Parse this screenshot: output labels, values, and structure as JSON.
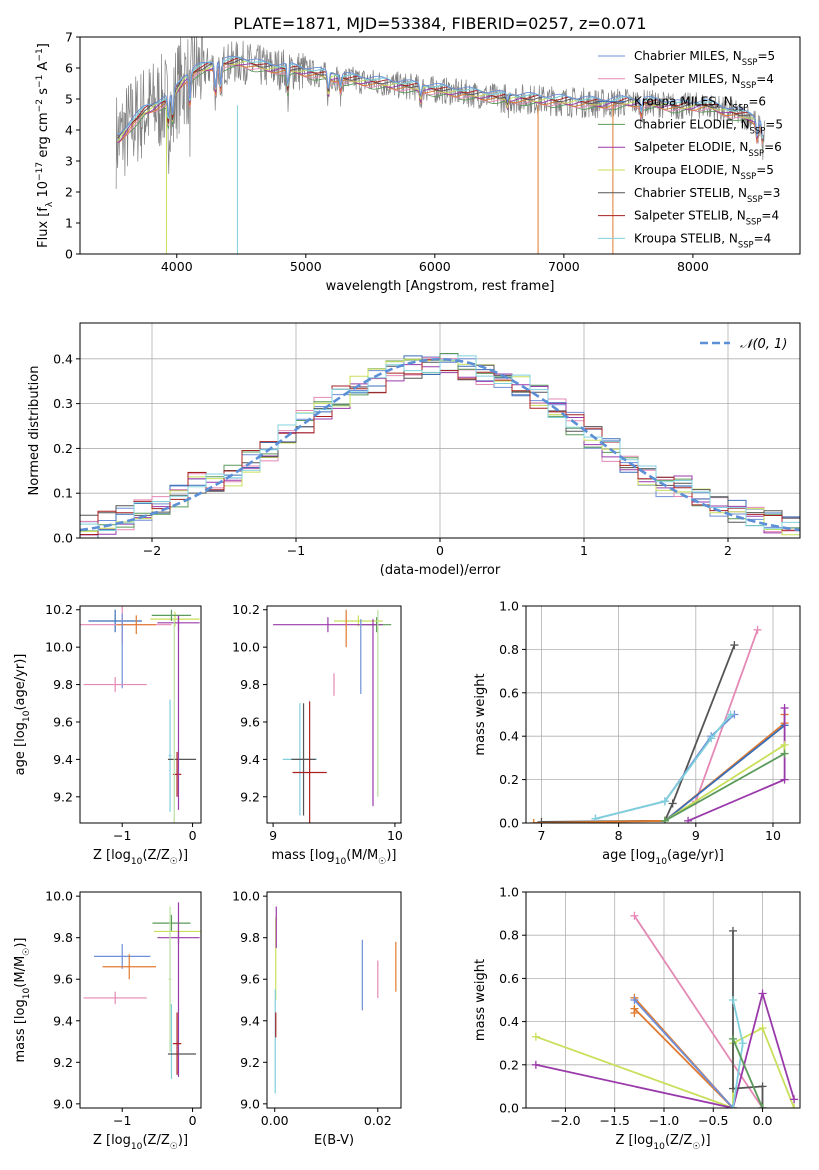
{
  "figure_title": "PLATE=1871, MJD=53384, FIBERID=0257, z=0.071",
  "colors": {
    "c1": "#6f8fd8",
    "c2": "#e589b5",
    "c3": "#3a6fb8",
    "c4": "#5a9a5a",
    "c5": "#9a3aaa",
    "c6": "#c8df5a",
    "c7": "#555555",
    "c8": "#aa2020",
    "c9": "#80d0dc",
    "c10": "#e07a30",
    "c11": "#b8e0a0",
    "data": "#808080",
    "gauss": "#5b8fd6"
  },
  "chart_data": [
    {
      "id": "spectrum",
      "type": "line",
      "xlabel": "wavelength [Angstrom, rest frame]",
      "ylabel": "Flux [f_λ 10^-17 erg cm^-2 s^-1 A^-1]",
      "xlim": [
        3250,
        8830
      ],
      "ylim": [
        0,
        7
      ],
      "xticks": [
        4000,
        5000,
        6000,
        7000,
        8000
      ],
      "yticks": [
        0,
        1,
        2,
        3,
        4,
        5,
        6,
        7
      ],
      "legend_position": "top-right",
      "legend": [
        {
          "label": "Chabrier MILES, N_SSP=5",
          "color": "c1"
        },
        {
          "label": "Salpeter MILES, N_SSP=4",
          "color": "c2"
        },
        {
          "label": "Kroupa MILES, N_SSP=6",
          "color": "c3"
        },
        {
          "label": "Chabrier ELODIE, N_SSP=5",
          "color": "c4"
        },
        {
          "label": "Salpeter ELODIE, N_SSP=6",
          "color": "c5"
        },
        {
          "label": "Kroupa ELODIE, N_SSP=5",
          "color": "c6"
        },
        {
          "label": "Chabrier STELIB, N_SSP=3",
          "color": "c7"
        },
        {
          "label": "Salpeter STELIB, N_SSP=4",
          "color": "c8"
        },
        {
          "label": "Kroupa STELIB, N_SSP=4",
          "color": "c9"
        }
      ],
      "continuum": [
        [
          3550,
          3.7
        ],
        [
          3650,
          4.2
        ],
        [
          3750,
          4.6
        ],
        [
          3850,
          4.8
        ],
        [
          3950,
          5.0
        ],
        [
          4050,
          5.6
        ],
        [
          4150,
          5.9
        ],
        [
          4300,
          6.1
        ],
        [
          4500,
          6.2
        ],
        [
          4700,
          6.0
        ],
        [
          4900,
          5.95
        ],
        [
          5100,
          5.8
        ],
        [
          5300,
          5.65
        ],
        [
          5500,
          5.55
        ],
        [
          5700,
          5.45
        ],
        [
          5900,
          5.35
        ],
        [
          6100,
          5.25
        ],
        [
          6300,
          5.15
        ],
        [
          6500,
          5.05
        ],
        [
          6700,
          5.0
        ],
        [
          6900,
          4.95
        ],
        [
          7100,
          4.9
        ],
        [
          7300,
          4.85
        ],
        [
          7500,
          4.9
        ],
        [
          7700,
          4.85
        ],
        [
          7900,
          4.75
        ],
        [
          8100,
          4.8
        ],
        [
          8300,
          4.55
        ],
        [
          8450,
          4.4
        ],
        [
          8550,
          4.1
        ]
      ],
      "dips": [
        [
          3934,
          4.0
        ],
        [
          3968,
          4.1
        ],
        [
          4101,
          4.6
        ],
        [
          4300,
          5.0
        ],
        [
          4340,
          5.1
        ],
        [
          4861,
          5.1
        ],
        [
          5175,
          5.0
        ],
        [
          5270,
          5.2
        ],
        [
          5890,
          4.9
        ],
        [
          6563,
          4.7
        ],
        [
          7600,
          4.4
        ],
        [
          8498,
          3.6
        ],
        [
          8542,
          3.4
        ],
        [
          8662,
          3.6
        ]
      ]
    },
    {
      "id": "residuals",
      "type": "line",
      "xlabel": "(data-model)/error",
      "ylabel": "Normed distribution",
      "xlim": [
        -2.5,
        2.5
      ],
      "ylim": [
        0,
        0.48
      ],
      "xticks": [
        -2,
        -1,
        0,
        1,
        2
      ],
      "yticks": [
        0.0,
        0.1,
        0.2,
        0.3,
        0.4
      ],
      "legend_position": "top-right",
      "legend": [
        {
          "label": "𝒩(0, 1)",
          "color": "gauss"
        }
      ]
    },
    {
      "id": "z_age",
      "type": "scatter",
      "xlabel": "Z [log10(Z/Z☉)]",
      "ylabel": "age [log10(age/yr)]",
      "xlim": [
        -1.6,
        0.12
      ],
      "ylim": [
        9.06,
        10.22
      ],
      "xticks": [
        -1,
        0
      ],
      "yticks": [
        9.2,
        9.4,
        9.6,
        9.8,
        10.0,
        10.2
      ],
      "points": [
        {
          "x": -1.1,
          "y": 10.14,
          "xerr": 0.38,
          "yerr": 0.06,
          "color": "c3"
        },
        {
          "x": -1.0,
          "y": 10.12,
          "xerr": 0.7,
          "yerr": 0.1,
          "color": "c2"
        },
        {
          "x": -0.8,
          "y": 10.12,
          "xerr": 0.28,
          "yerr": 0.05,
          "color": "c10"
        },
        {
          "x": -0.25,
          "y": 10.15,
          "xerr": 0.35,
          "yerr": 0.04,
          "color": "c6"
        },
        {
          "x": -0.2,
          "y": 10.13,
          "xerr": 0.3,
          "yerr": 0.04,
          "color": "c5"
        },
        {
          "x": -0.3,
          "y": 10.17,
          "xerr": 0.28,
          "yerr": 0.03,
          "color": "c4"
        },
        {
          "x": -1.0,
          "y": 9.98,
          "xerr": 0.0,
          "yerr": 0.2,
          "color": "c1"
        },
        {
          "x": -1.1,
          "y": 9.8,
          "xerr": 0.45,
          "yerr": 0.04,
          "color": "c2"
        },
        {
          "x": -0.32,
          "y": 9.42,
          "xerr": 0.02,
          "yerr": 0.3,
          "color": "c9"
        },
        {
          "x": -0.15,
          "y": 9.4,
          "xerr": 0.2,
          "yerr": 0.0,
          "color": "c7"
        },
        {
          "x": -0.22,
          "y": 9.32,
          "xerr": 0.06,
          "yerr": 0.12,
          "color": "c8"
        },
        {
          "x": -0.2,
          "y": 9.65,
          "xerr": 0.0,
          "yerr": 0.52,
          "color": "c5"
        },
        {
          "x": -0.26,
          "y": 9.6,
          "xerr": 0.0,
          "yerr": 0.55,
          "color": "c11"
        }
      ]
    },
    {
      "id": "mass_age",
      "type": "scatter",
      "xlabel": "mass [log10(M/M☉)]",
      "ylabel": "",
      "xlim": [
        8.95,
        10.05
      ],
      "ylim": [
        9.06,
        10.22
      ],
      "xticks": [
        9,
        10
      ],
      "yticks": [
        9.2,
        9.4,
        9.6,
        9.8,
        10.0,
        10.2
      ],
      "points": [
        {
          "x": 9.85,
          "y": 10.12,
          "xerr": 0.12,
          "yerr": 0.04,
          "color": "c4"
        },
        {
          "x": 9.7,
          "y": 10.14,
          "xerr": 0.2,
          "yerr": 0.03,
          "color": "c6"
        },
        {
          "x": 9.45,
          "y": 10.12,
          "xerr": 0.45,
          "yerr": 0.04,
          "color": "c5"
        },
        {
          "x": 9.6,
          "y": 10.1,
          "xerr": 0.0,
          "yerr": 0.1,
          "color": "c10"
        },
        {
          "x": 9.72,
          "y": 9.95,
          "xerr": 0.0,
          "yerr": 0.2,
          "color": "c1"
        },
        {
          "x": 9.5,
          "y": 9.8,
          "xerr": 0.0,
          "yerr": 0.06,
          "color": "c2"
        },
        {
          "x": 9.82,
          "y": 9.65,
          "xerr": 0.0,
          "yerr": 0.5,
          "color": "c5"
        },
        {
          "x": 9.86,
          "y": 9.7,
          "xerr": 0.0,
          "yerr": 0.5,
          "color": "c11"
        },
        {
          "x": 9.22,
          "y": 9.4,
          "xerr": 0.14,
          "yerr": 0.3,
          "color": "c9"
        },
        {
          "x": 9.25,
          "y": 9.4,
          "xerr": 0.1,
          "yerr": 0.3,
          "color": "c7"
        },
        {
          "x": 9.3,
          "y": 9.33,
          "xerr": 0.14,
          "yerr": 0.38,
          "color": "c8"
        }
      ]
    },
    {
      "id": "age_weight",
      "type": "line",
      "xlabel": "age [log10(age/yr)]",
      "ylabel": "mass weight",
      "xlim": [
        6.8,
        10.35
      ],
      "ylim": [
        0,
        1.0
      ],
      "xticks": [
        7,
        8,
        9,
        10
      ],
      "yticks": [
        0.0,
        0.2,
        0.4,
        0.6,
        0.8,
        1.0
      ],
      "series": [
        {
          "color": "c7",
          "points": [
            [
              7.0,
              0.005
            ],
            [
              8.6,
              0.01
            ],
            [
              8.7,
              0.09
            ],
            [
              9.5,
              0.82
            ]
          ]
        },
        {
          "color": "c2",
          "points": [
            [
              8.6,
              0.01
            ],
            [
              9.0,
              0.1
            ],
            [
              9.8,
              0.89
            ]
          ]
        },
        {
          "color": "c1",
          "points": [
            [
              7.7,
              0.02
            ],
            [
              8.6,
              0.1
            ],
            [
              9.2,
              0.4
            ],
            [
              9.5,
              0.5
            ]
          ]
        },
        {
          "color": "c9",
          "points": [
            [
              7.7,
              0.02
            ],
            [
              8.6,
              0.1
            ],
            [
              9.2,
              0.39
            ],
            [
              9.45,
              0.5
            ]
          ]
        },
        {
          "color": "c10",
          "points": [
            [
              6.9,
              0.0
            ],
            [
              8.6,
              0.01
            ],
            [
              10.15,
              0.46
            ],
            [
              10.15,
              0.5
            ]
          ]
        },
        {
          "color": "c3",
          "points": [
            [
              8.6,
              0.01
            ],
            [
              10.15,
              0.45
            ]
          ]
        },
        {
          "color": "c5",
          "points": [
            [
              8.9,
              0.01
            ],
            [
              10.15,
              0.2
            ],
            [
              10.15,
              0.53
            ]
          ]
        },
        {
          "color": "c6",
          "points": [
            [
              8.6,
              0.01
            ],
            [
              10.15,
              0.36
            ],
            [
              10.15,
              0.32
            ]
          ]
        },
        {
          "color": "c4",
          "points": [
            [
              8.6,
              0.01
            ],
            [
              10.15,
              0.32
            ]
          ]
        }
      ]
    },
    {
      "id": "z_mass",
      "type": "scatter",
      "xlabel": "Z [log10(Z/Z☉)]",
      "ylabel": "mass [log10(M/M☉)]",
      "xlim": [
        -1.6,
        0.12
      ],
      "ylim": [
        8.98,
        10.02
      ],
      "xticks": [
        -1,
        0
      ],
      "yticks": [
        9.0,
        9.2,
        9.4,
        9.6,
        9.8,
        10.0
      ],
      "points": [
        {
          "x": -1.0,
          "y": 9.71,
          "xerr": 0.4,
          "yerr": 0.06,
          "color": "c1"
        },
        {
          "x": -0.9,
          "y": 9.66,
          "xerr": 0.38,
          "yerr": 0.06,
          "color": "c10"
        },
        {
          "x": -1.1,
          "y": 9.51,
          "xerr": 0.45,
          "yerr": 0.03,
          "color": "c2"
        },
        {
          "x": -0.3,
          "y": 9.87,
          "xerr": 0.27,
          "yerr": 0.04,
          "color": "c4"
        },
        {
          "x": -0.2,
          "y": 9.83,
          "xerr": 0.35,
          "yerr": 0.03,
          "color": "c6"
        },
        {
          "x": -0.2,
          "y": 9.8,
          "xerr": 0.3,
          "yerr": 0.03,
          "color": "c5"
        },
        {
          "x": -0.32,
          "y": 9.6,
          "xerr": 0.02,
          "yerr": 0.35,
          "color": "c11"
        },
        {
          "x": -0.2,
          "y": 9.55,
          "xerr": 0.0,
          "yerr": 0.42,
          "color": "c5"
        },
        {
          "x": -0.3,
          "y": 9.3,
          "xerr": 0.0,
          "yerr": 0.18,
          "color": "c9"
        },
        {
          "x": -0.15,
          "y": 9.24,
          "xerr": 0.2,
          "yerr": 0.0,
          "color": "c7"
        },
        {
          "x": -0.22,
          "y": 9.29,
          "xerr": 0.06,
          "yerr": 0.15,
          "color": "c8"
        }
      ]
    },
    {
      "id": "ebv_mass",
      "type": "scatter",
      "xlabel": "E(B-V)",
      "ylabel": "",
      "xlim": [
        -0.0015,
        0.0245
      ],
      "ylim": [
        8.98,
        10.02
      ],
      "xticks": [
        0.0,
        0.02
      ],
      "yticks": [
        9.0,
        9.2,
        9.4,
        9.6,
        9.8,
        10.0
      ],
      "points": [
        {
          "x": 0.0002,
          "y": 9.7,
          "xerr": 0.0,
          "yerr": 0.2,
          "color": "c6"
        },
        {
          "x": 0.0003,
          "y": 9.85,
          "xerr": 0.0,
          "yerr": 0.1,
          "color": "c5"
        },
        {
          "x": 0.0001,
          "y": 9.3,
          "xerr": 0.0,
          "yerr": 0.25,
          "color": "c9"
        },
        {
          "x": 0.0002,
          "y": 9.38,
          "xerr": 0.0,
          "yerr": 0.06,
          "color": "c8"
        },
        {
          "x": 0.017,
          "y": 9.62,
          "xerr": 0.0,
          "yerr": 0.17,
          "color": "c1"
        },
        {
          "x": 0.02,
          "y": 9.6,
          "xerr": 0.0,
          "yerr": 0.09,
          "color": "c2"
        },
        {
          "x": 0.0235,
          "y": 9.66,
          "xerr": 0.0,
          "yerr": 0.12,
          "color": "c10"
        }
      ]
    },
    {
      "id": "z_weight",
      "type": "line",
      "xlabel": "Z [log10(Z/Z☉)]",
      "ylabel": "mass weight",
      "xlim": [
        -2.4,
        0.38
      ],
      "ylim": [
        0,
        1.0
      ],
      "xticks": [
        -2.0,
        -1.5,
        -1.0,
        -0.5,
        0.0
      ],
      "yticks": [
        0.0,
        0.2,
        0.4,
        0.6,
        0.8,
        1.0
      ],
      "series": [
        {
          "color": "c2",
          "points": [
            [
              -1.3,
              0.89
            ],
            [
              0.0,
              0.0
            ]
          ]
        },
        {
          "color": "c6",
          "points": [
            [
              -2.3,
              0.33
            ],
            [
              -0.3,
              0.0
            ],
            [
              -0.3,
              0.3
            ],
            [
              0.0,
              0.37
            ],
            [
              0.32,
              0.0
            ]
          ]
        },
        {
          "color": "c5",
          "points": [
            [
              -2.3,
              0.2
            ],
            [
              -0.3,
              0.0
            ],
            [
              0.0,
              0.53
            ],
            [
              0.32,
              0.04
            ]
          ]
        },
        {
          "color": "c10",
          "points": [
            [
              -1.3,
              0.51
            ],
            [
              -0.3,
              0.0
            ],
            [
              -1.3,
              0.46
            ],
            [
              -1.3,
              0.44
            ]
          ]
        },
        {
          "color": "c1",
          "points": [
            [
              -1.3,
              0.5
            ],
            [
              -0.3,
              0.0
            ]
          ]
        },
        {
          "color": "c7",
          "points": [
            [
              -0.3,
              0.82
            ],
            [
              -0.3,
              0.09
            ],
            [
              0.0,
              0.1
            ],
            [
              0.0,
              0.0
            ]
          ]
        },
        {
          "color": "c9",
          "points": [
            [
              -0.3,
              0.5
            ],
            [
              -0.2,
              0.3
            ],
            [
              -0.3,
              0.0
            ]
          ]
        },
        {
          "color": "c4",
          "points": [
            [
              -0.3,
              0.32
            ],
            [
              0.0,
              0.0
            ]
          ]
        }
      ]
    }
  ]
}
